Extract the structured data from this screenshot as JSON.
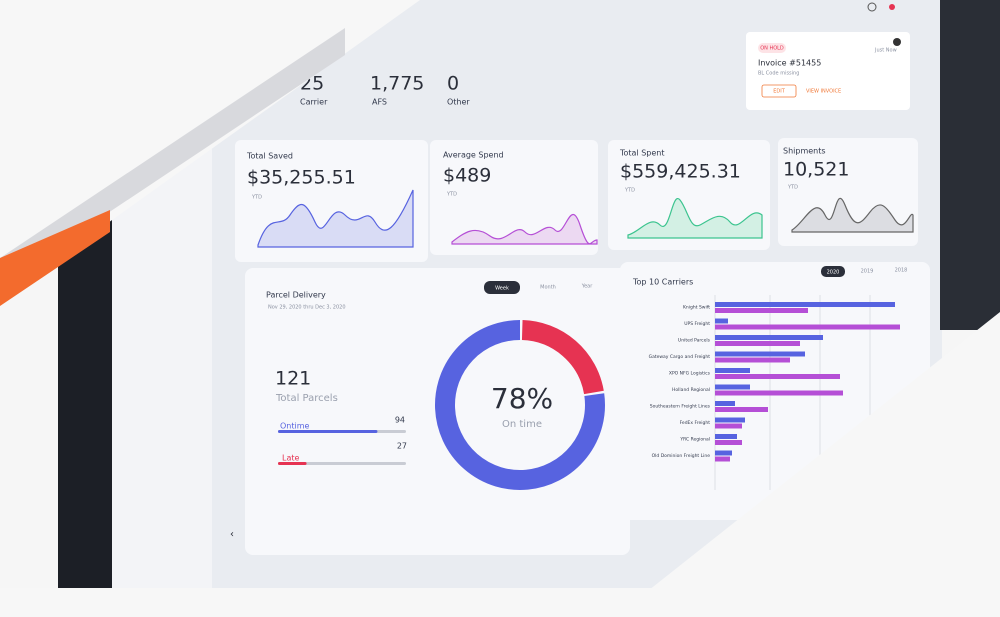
{
  "header": {
    "stats": [
      {
        "value": "25",
        "label": "Carrier"
      },
      {
        "value": "1,775",
        "label": "AFS"
      },
      {
        "value": "0",
        "label": "Other"
      }
    ]
  },
  "notification": {
    "badge": "ON HOLD",
    "time": "Just Now",
    "title": "Invoice #51455",
    "subtitle": "BL Code missing",
    "buttons": [
      "EDIT",
      "VIEW INVOICE"
    ]
  },
  "cards": [
    {
      "title": "Total Saved",
      "value": "$35,255.51",
      "period": "YTD"
    },
    {
      "title": "Average Spend",
      "value": "$489",
      "period": "YTD"
    },
    {
      "title": "Total Spent",
      "value": "$559,425.31",
      "period": "YTD"
    },
    {
      "title": "Shipments",
      "value": "10,521",
      "period": "YTD"
    }
  ],
  "parcel": {
    "title": "Parcel Delivery",
    "date": "Nov 29, 2020 thru Dec 3, 2020",
    "tabs": [
      "Week",
      "Month",
      "Year"
    ],
    "total": "121",
    "total_label": "Total Parcels",
    "ontime": {
      "label": "Ontime",
      "value": 94,
      "color": "#5763e0"
    },
    "late": {
      "label": "Late",
      "value": 27,
      "color": "#e63352"
    },
    "donut_value": "78%",
    "donut_label": "On time"
  },
  "carriers": {
    "title": "Top 10 Carriers",
    "tabs": [
      "2020",
      "2019",
      "2018"
    ],
    "labels": [
      "Knight Swift",
      "UPS Freight",
      "United Parcels",
      "Gateway Cargo and Freight",
      "XPO NFG Logistics",
      "Holland Regional",
      "Southeastern Freight Lines",
      "FedEx Freight",
      "YRC Regional",
      "Old Dominion Freight Line"
    ],
    "series": [
      {
        "color": "#5763e0",
        "values": [
          180,
          13,
          108,
          90,
          35,
          35,
          20,
          30,
          22,
          17
        ]
      },
      {
        "color": "#b54fd6",
        "values": [
          93,
          185,
          85,
          75,
          125,
          128,
          53,
          27,
          27,
          15
        ]
      }
    ]
  }
}
